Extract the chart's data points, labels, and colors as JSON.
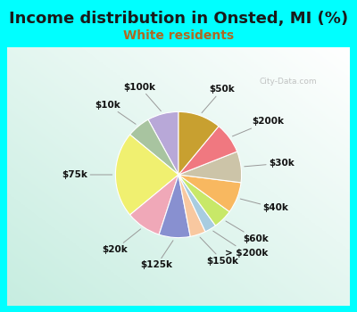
{
  "title": "Income distribution in Onsted, MI (%)",
  "subtitle": "White residents",
  "bg_color": "#00ffff",
  "labels": [
    "$100k",
    "$10k",
    "$75k",
    "$20k",
    "$125k",
    "$150k",
    "> $200k",
    "$60k",
    "$40k",
    "$30k",
    "$200k",
    "$50k"
  ],
  "values": [
    8,
    6,
    22,
    9,
    8,
    4,
    3,
    5,
    8,
    8,
    8,
    11
  ],
  "colors": [
    "#b8a8d8",
    "#a8c4a0",
    "#f0f070",
    "#f0a8b8",
    "#8890d0",
    "#f8c8a0",
    "#a8cce0",
    "#c8e868",
    "#f8b860",
    "#ccc4a8",
    "#f07880",
    "#c8a030"
  ],
  "startangle": 90,
  "title_fontsize": 13,
  "subtitle_fontsize": 10,
  "label_fontsize": 7.5,
  "watermark": "City-Data.com"
}
